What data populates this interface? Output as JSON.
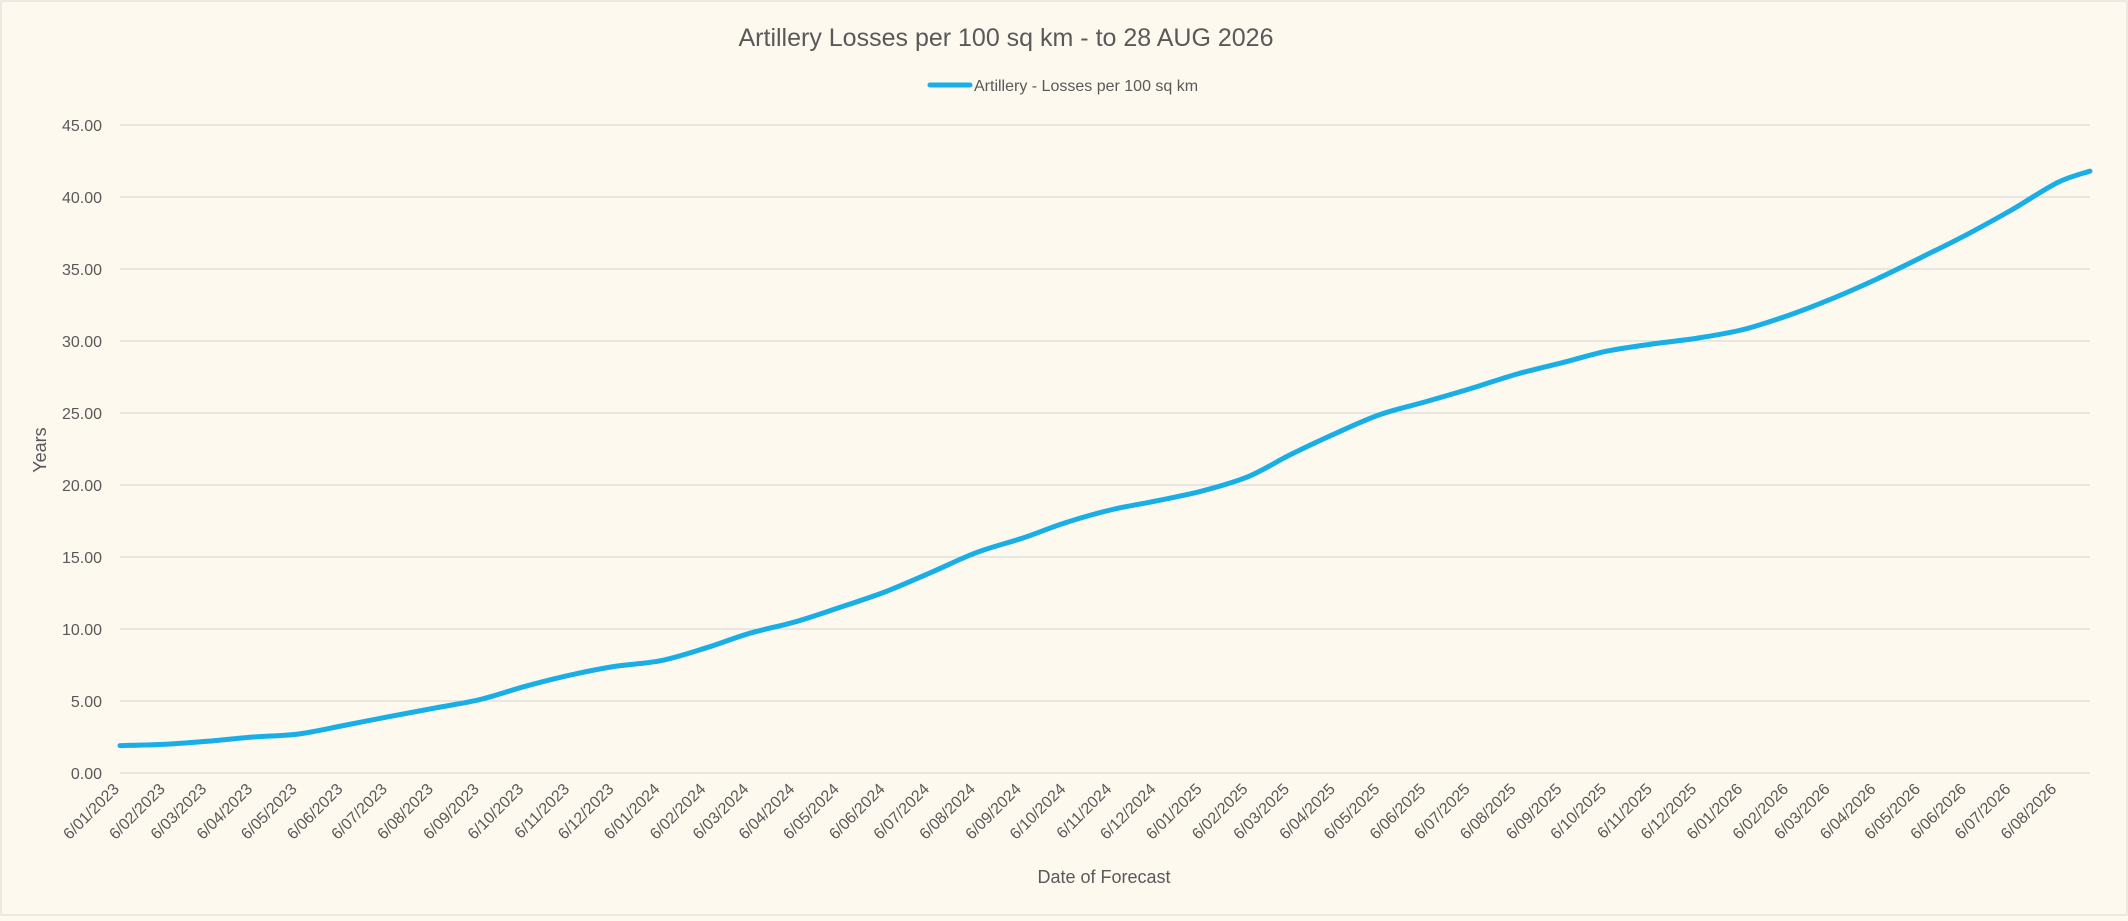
{
  "chart_data": {
    "type": "line",
    "title": "Artillery Losses per 100 sq km - to 28 AUG 2026",
    "xlabel": "Date of Forecast",
    "ylabel": "Years",
    "ylim": [
      0,
      45
    ],
    "yticks": [
      0,
      5,
      10,
      15,
      20,
      25,
      30,
      35,
      40,
      45
    ],
    "ytick_labels": [
      "0.00",
      "5.00",
      "10.00",
      "15.00",
      "20.00",
      "25.00",
      "30.00",
      "35.00",
      "40.00",
      "45.00"
    ],
    "xlim": [
      "2023-01-06",
      "2026-08-28"
    ],
    "categories": [
      "6/01/2023",
      "6/02/2023",
      "6/03/2023",
      "6/04/2023",
      "6/05/2023",
      "6/06/2023",
      "6/07/2023",
      "6/08/2023",
      "6/09/2023",
      "6/10/2023",
      "6/11/2023",
      "6/12/2023",
      "6/01/2024",
      "6/02/2024",
      "6/03/2024",
      "6/04/2024",
      "6/05/2024",
      "6/06/2024",
      "6/07/2024",
      "6/08/2024",
      "6/09/2024",
      "6/10/2024",
      "6/11/2024",
      "6/12/2024",
      "6/01/2025",
      "6/02/2025",
      "6/03/2025",
      "6/04/2025",
      "6/05/2025",
      "6/06/2025",
      "6/07/2025",
      "6/08/2025",
      "6/09/2025",
      "6/10/2025",
      "6/11/2025",
      "6/12/2025",
      "6/01/2026",
      "6/02/2026",
      "6/03/2026",
      "6/04/2026",
      "6/05/2026",
      "6/06/2026",
      "6/07/2026",
      "6/08/2026"
    ],
    "grid": true,
    "legend": "top-center",
    "colors": {
      "background": "#fdf9ee",
      "line": "#1aaee6",
      "grid": "#d4d4d4",
      "text": "#595959"
    },
    "series": [
      {
        "name": "Artillery - Losses per 100 sq km",
        "x": [
          "2023-01-06",
          "2023-02-06",
          "2023-03-06",
          "2023-04-06",
          "2023-05-06",
          "2023-06-06",
          "2023-07-06",
          "2023-08-06",
          "2023-09-06",
          "2023-10-06",
          "2023-11-06",
          "2023-12-06",
          "2024-01-06",
          "2024-02-06",
          "2024-03-06",
          "2024-04-06",
          "2024-05-06",
          "2024-06-06",
          "2024-07-06",
          "2024-08-06",
          "2024-09-06",
          "2024-10-06",
          "2024-11-06",
          "2024-12-06",
          "2025-01-06",
          "2025-02-06",
          "2025-03-06",
          "2025-04-06",
          "2025-05-06",
          "2025-06-06",
          "2025-07-06",
          "2025-08-06",
          "2025-09-06",
          "2025-10-06",
          "2025-11-06",
          "2025-12-06",
          "2026-01-06",
          "2026-02-06",
          "2026-03-06",
          "2026-04-06",
          "2026-05-06",
          "2026-06-06",
          "2026-07-06",
          "2026-08-06",
          "2026-08-28"
        ],
        "values": [
          1.9,
          2.0,
          2.2,
          2.5,
          2.7,
          3.3,
          3.9,
          4.5,
          5.1,
          6.0,
          6.8,
          7.4,
          7.8,
          8.7,
          9.7,
          10.5,
          11.5,
          12.6,
          13.9,
          15.3,
          16.3,
          17.4,
          18.3,
          18.9,
          19.6,
          20.6,
          22.1,
          23.6,
          24.9,
          25.8,
          26.7,
          27.7,
          28.5,
          29.3,
          29.8,
          30.2,
          30.8,
          31.8,
          32.9,
          34.3,
          35.8,
          37.4,
          39.1,
          41.0,
          41.8
        ]
      }
    ]
  }
}
